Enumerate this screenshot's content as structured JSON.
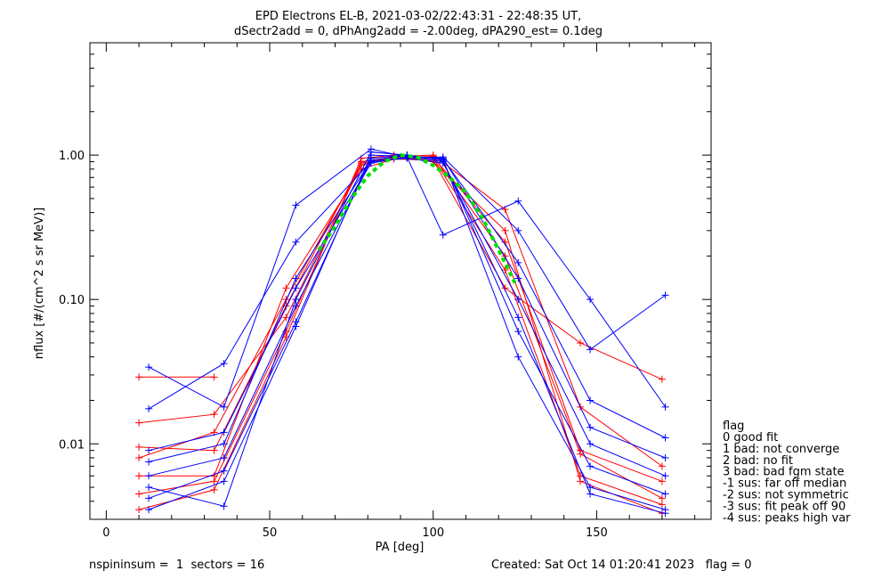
{
  "chart_data": {
    "type": "line",
    "title": "EPD Electrons EL-B, 2021-03-02/22:43:31 - 22:48:35 UT,",
    "subtitle": "dSectr2add = 0, dPhAng2add = -2.00deg, dPA290_est=   0.1deg",
    "xlabel": "PA [deg]",
    "ylabel": "nflux [#/(cm^2 s sr MeV)]",
    "xlim": [
      -5,
      185
    ],
    "ylim": [
      0.003,
      6.0
    ],
    "yscale": "log",
    "xticks": [
      0,
      50,
      100,
      150
    ],
    "yticks": [
      {
        "v": 0.01,
        "label": "0.01"
      },
      {
        "v": 0.1,
        "label": "0.10"
      },
      {
        "v": 1.0,
        "label": "1.00"
      }
    ],
    "colors": {
      "red": "#ff0000",
      "blue": "#0000ff",
      "purple": "#8000a0",
      "green": "#00e000"
    },
    "series": [
      {
        "color": "red",
        "x": [
          10,
          33,
          55,
          78,
          88,
          100,
          122,
          145,
          170
        ],
        "y": [
          0.0045,
          0.0055,
          0.06,
          0.9,
          0.97,
          0.95,
          0.16,
          0.006,
          0.0038
        ]
      },
      {
        "color": "red",
        "x": [
          10,
          33,
          55,
          78,
          88,
          100,
          122,
          145,
          170
        ],
        "y": [
          0.008,
          0.012,
          0.1,
          0.85,
          0.98,
          1.0,
          0.42,
          0.018,
          0.007
        ]
      },
      {
        "color": "red",
        "x": [
          10,
          33,
          55,
          78,
          88,
          100,
          122,
          145,
          170
        ],
        "y": [
          0.0035,
          0.0048,
          0.055,
          0.95,
          1.0,
          0.9,
          0.3,
          0.0055,
          0.0033
        ]
      },
      {
        "color": "red",
        "x": [
          10,
          33,
          55,
          78,
          88,
          100,
          122,
          145,
          170
        ],
        "y": [
          0.0095,
          0.009,
          0.09,
          0.88,
          0.96,
          0.98,
          0.2,
          0.0085,
          0.0042
        ]
      },
      {
        "color": "red",
        "x": [
          10,
          33,
          55,
          78,
          88,
          100,
          122,
          145,
          170
        ],
        "y": [
          0.006,
          0.006,
          0.12,
          0.8,
          0.94,
          0.92,
          0.12,
          0.05,
          0.028
        ]
      },
      {
        "color": "red",
        "x": [
          10,
          33
        ],
        "y": [
          0.029,
          0.029
        ]
      },
      {
        "color": "red",
        "x": [
          10,
          33,
          55,
          78,
          88,
          100,
          122,
          145,
          170
        ],
        "y": [
          0.014,
          0.016,
          0.075,
          0.85,
          0.98,
          0.97,
          0.25,
          0.009,
          0.0055
        ]
      },
      {
        "color": "blue",
        "x": [
          13,
          36,
          58,
          81,
          92,
          103,
          126,
          148,
          171
        ],
        "y": [
          0.006,
          0.008,
          0.09,
          0.9,
          0.95,
          0.88,
          0.1,
          0.01,
          0.006
        ]
      },
      {
        "color": "blue",
        "x": [
          13,
          36,
          58,
          81,
          92,
          103,
          126,
          148,
          171
        ],
        "y": [
          0.0042,
          0.0065,
          0.07,
          0.95,
          1.0,
          0.92,
          0.06,
          0.007,
          0.0045
        ]
      },
      {
        "color": "blue",
        "x": [
          13,
          36,
          58,
          81,
          92,
          103,
          126,
          148,
          171
        ],
        "y": [
          0.009,
          0.012,
          0.12,
          0.88,
          0.97,
          0.95,
          0.14,
          0.013,
          0.008
        ]
      },
      {
        "color": "blue",
        "x": [
          13,
          36,
          58,
          81,
          92,
          103,
          126,
          148,
          171
        ],
        "y": [
          0.034,
          0.018,
          0.45,
          1.1,
          0.97,
          0.28,
          0.48,
          0.1,
          0.018
        ]
      },
      {
        "color": "blue",
        "x": [
          13,
          36,
          58,
          81,
          92,
          103,
          126,
          148,
          171
        ],
        "y": [
          0.0175,
          0.036,
          0.25,
          0.9,
          0.96,
          0.97,
          0.3,
          0.045,
          0.107
        ]
      },
      {
        "color": "blue",
        "x": [
          13,
          36,
          58,
          81,
          92,
          103,
          126,
          148,
          171
        ],
        "y": [
          0.005,
          0.0037,
          0.1,
          1.05,
          1.0,
          0.93,
          0.04,
          0.005,
          0.0035
        ]
      },
      {
        "color": "blue",
        "x": [
          13,
          36,
          58,
          81,
          92,
          103,
          126,
          148,
          171
        ],
        "y": [
          0.0075,
          0.01,
          0.14,
          0.92,
          0.99,
          0.94,
          0.18,
          0.02,
          0.011
        ]
      },
      {
        "color": "blue",
        "x": [
          13,
          36,
          58,
          81,
          92,
          103,
          126,
          148,
          171
        ],
        "y": [
          0.0035,
          0.0055,
          0.065,
          1.0,
          0.98,
          0.9,
          0.075,
          0.0045,
          0.0033
        ]
      },
      {
        "color": "green",
        "style": "dashed",
        "x": [
          65,
          70,
          75,
          80,
          85,
          90,
          95,
          100,
          105,
          110,
          115,
          120,
          125
        ],
        "y": [
          0.22,
          0.32,
          0.5,
          0.72,
          0.9,
          1.0,
          0.97,
          0.85,
          0.7,
          0.55,
          0.37,
          0.22,
          0.13
        ]
      }
    ],
    "legend": {
      "title": "flag",
      "items": [
        "0 good fit",
        "1 bad: not converge",
        "2 bad: no fit",
        "3 bad: bad fgm state",
        "-1 sus: far off median",
        "-2 sus: not symmetric",
        "-3 sus: fit peak off 90",
        "-4 sus: peaks high var"
      ]
    }
  },
  "footer": {
    "left": "nspininsum =  1  sectors = 16",
    "right": "Created: Sat Oct 14 01:20:41 2023   flag = 0"
  }
}
